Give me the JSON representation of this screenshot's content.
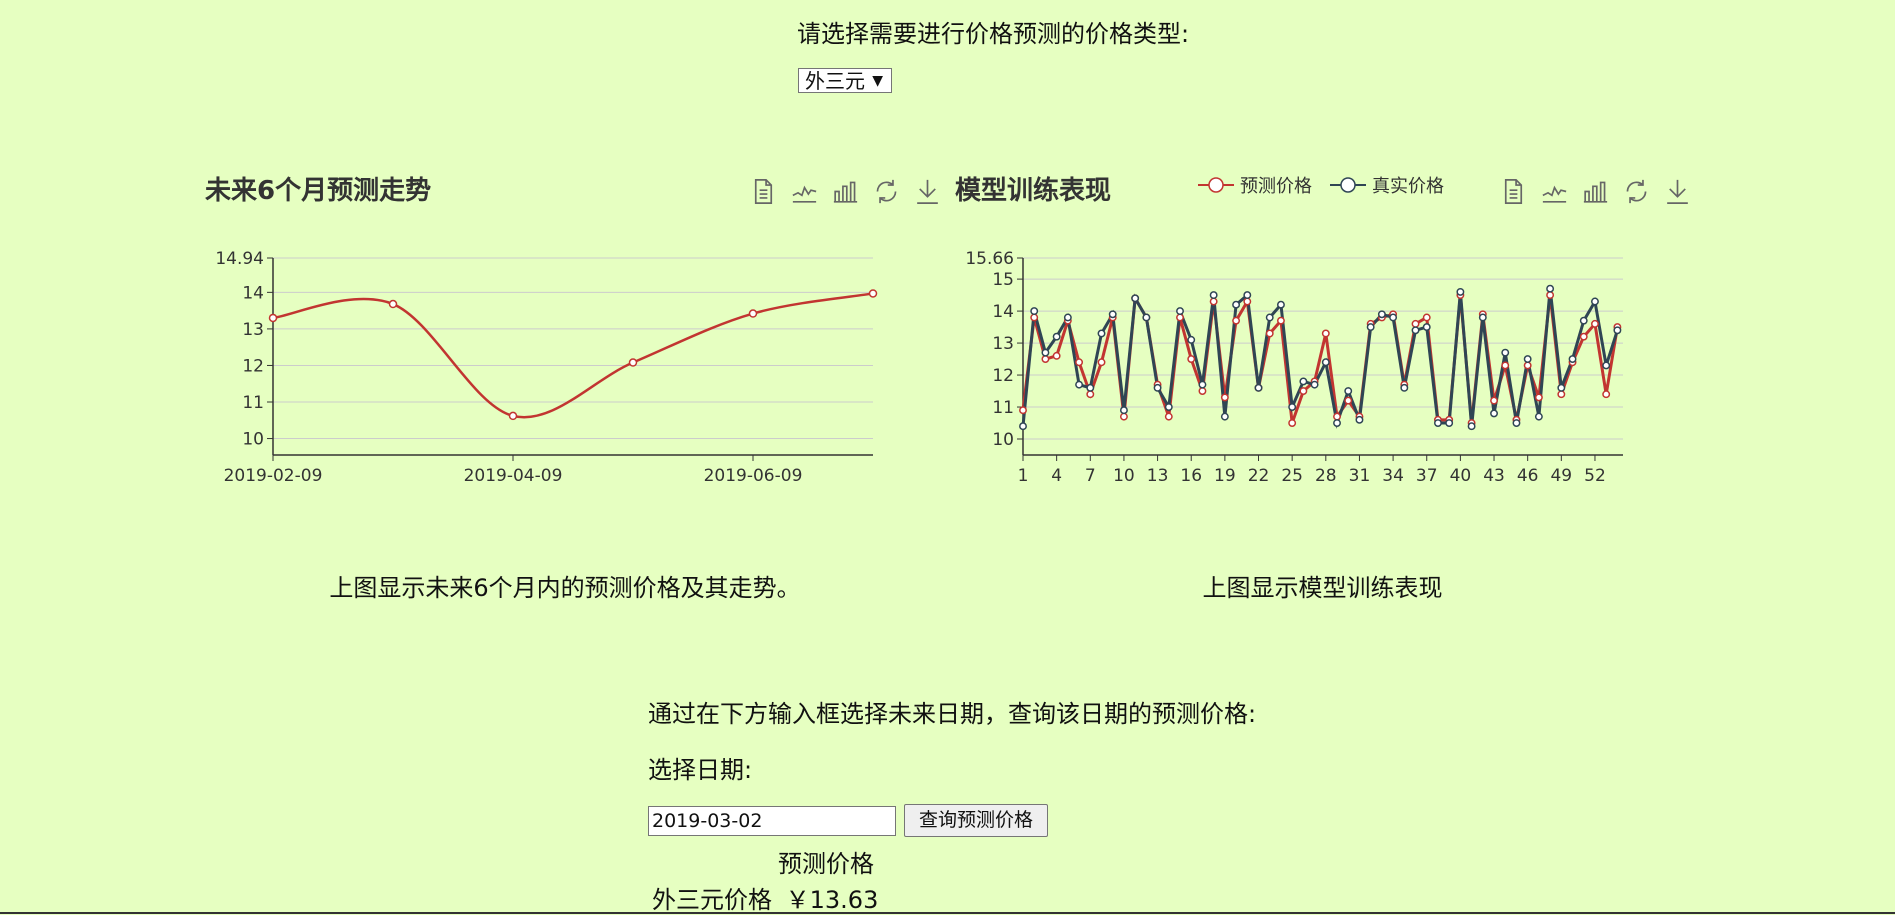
{
  "page": {
    "prompt": "请选择需要进行价格预测的价格类型:",
    "select_value": "外三元",
    "caption_left": "上图显示未来6个月内的预测价格及其走势。",
    "caption_right": "上图显示模型训练表现",
    "query_prompt": "通过在下方输入框选择未来日期，查询该日期的预测价格:",
    "date_label": "选择日期:",
    "date_value": "2019-03-02",
    "query_button": "查询预测价格",
    "result_header": "预测价格",
    "result_label": "外三元价格",
    "result_value": "￥13.63"
  },
  "colors": {
    "background": "#e6ffc1",
    "predicted": "#c23531",
    "actual": "#2f4554",
    "axis": "#333333",
    "grid": "#cccccc"
  },
  "toolbox_icons": [
    "data-view-icon",
    "line-chart-icon",
    "bar-chart-icon",
    "restore-icon",
    "download-icon"
  ],
  "chart_data": [
    {
      "type": "line",
      "title": "未来6个月预测走势",
      "smooth": true,
      "x": [
        "2019-02-09",
        "2019-03-09",
        "2019-04-09",
        "2019-05-09",
        "2019-06-09",
        "2019-07-09"
      ],
      "values": [
        13.3,
        13.68,
        10.62,
        12.08,
        13.42,
        13.97
      ],
      "xticks": [
        "2019-02-09",
        "2019-04-09",
        "2019-06-09"
      ],
      "yticks": [
        "10",
        "11",
        "12",
        "13",
        "14",
        "14.94"
      ],
      "ylim": [
        9.55,
        14.94
      ],
      "grid": true
    },
    {
      "type": "line",
      "title": "模型训练表现",
      "legend": [
        "预测价格",
        "真实价格"
      ],
      "legend_position": "top-right",
      "x_count": 54,
      "xticks": [
        "1",
        "4",
        "7",
        "10",
        "13",
        "16",
        "19",
        "22",
        "25",
        "28",
        "31",
        "34",
        "37",
        "40",
        "43",
        "46",
        "49",
        "52"
      ],
      "yticks": [
        "10",
        "11",
        "12",
        "13",
        "14",
        "15",
        "15.66"
      ],
      "ylim": [
        9.5,
        15.66
      ],
      "grid": true,
      "series": [
        {
          "name": "预测价格",
          "values": [
            10.9,
            13.8,
            12.5,
            12.6,
            13.7,
            12.4,
            11.4,
            12.4,
            13.8,
            10.7,
            14.4,
            13.8,
            11.7,
            10.7,
            13.8,
            12.5,
            11.5,
            14.3,
            11.3,
            13.7,
            14.3,
            11.6,
            13.3,
            13.7,
            10.5,
            11.5,
            11.8,
            13.3,
            10.7,
            11.2,
            10.7,
            13.6,
            13.8,
            13.9,
            11.7,
            13.6,
            13.8,
            10.6,
            10.6,
            14.5,
            10.5,
            13.9,
            11.2,
            12.3,
            10.6,
            12.3,
            11.3,
            14.5,
            11.4,
            12.4,
            13.2,
            13.6,
            11.4,
            13.5
          ]
        },
        {
          "name": "真实价格",
          "values": [
            10.4,
            14.0,
            12.7,
            13.2,
            13.8,
            11.7,
            11.6,
            13.3,
            13.9,
            10.9,
            14.4,
            13.8,
            11.6,
            11.0,
            14.0,
            13.1,
            11.7,
            14.5,
            10.7,
            14.2,
            14.5,
            11.6,
            13.8,
            14.2,
            11.0,
            11.8,
            11.7,
            12.4,
            10.5,
            11.5,
            10.6,
            13.5,
            13.9,
            13.8,
            11.6,
            13.4,
            13.5,
            10.5,
            10.5,
            14.6,
            10.4,
            13.8,
            10.8,
            12.7,
            10.5,
            12.5,
            10.7,
            14.7,
            11.6,
            12.5,
            13.7,
            14.3,
            12.3,
            13.4
          ]
        }
      ]
    }
  ]
}
